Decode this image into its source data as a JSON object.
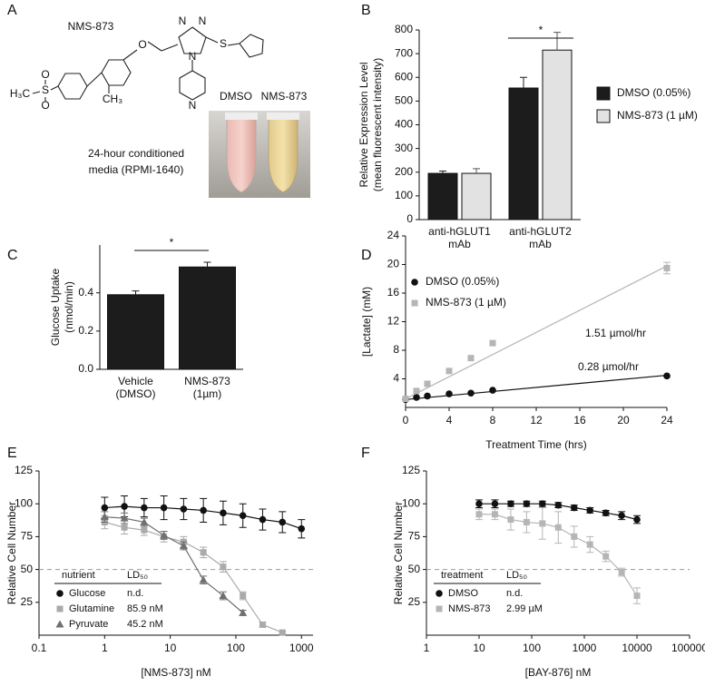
{
  "panel_a": {
    "panel": "A",
    "compound": "NMS-873",
    "tube_labels": [
      "DMSO",
      "NMS-873"
    ],
    "caption": [
      "24-hour conditioned",
      "media (RPMI-1640)"
    ],
    "atoms": [
      "H₃C",
      "S",
      "O",
      "O",
      "CH₃",
      "O",
      "N",
      "N",
      "N",
      "S",
      "N"
    ]
  },
  "chart_data": [
    {
      "panel": "B",
      "type": "bar",
      "ylabel": [
        "Relative Expression Level",
        "(mean fluorescent intensity)"
      ],
      "categories": [
        [
          "anti-hGLUT1",
          "mAb"
        ],
        [
          "anti-hGLUT2",
          "mAb"
        ]
      ],
      "series": [
        {
          "name": "DMSO (0.05%)",
          "color": "#1c1c1c",
          "values": [
            195,
            555
          ],
          "errors": [
            10,
            45
          ]
        },
        {
          "name": "NMS-873 (1 µM)",
          "color": "#e2e2e2",
          "values": [
            195,
            715
          ],
          "errors": [
            20,
            75
          ]
        }
      ],
      "ylim": [
        0,
        800
      ],
      "yticks": [
        0,
        100,
        200,
        300,
        400,
        500,
        600,
        700,
        800
      ],
      "significance": "*"
    },
    {
      "panel": "C",
      "type": "bar",
      "ylabel": [
        "Glucose Uptake",
        "(nmol/min)"
      ],
      "categories": [
        [
          "Vehicle",
          "(DMSO)"
        ],
        [
          "NMS-873",
          "(1µm)"
        ]
      ],
      "values": [
        0.39,
        0.535
      ],
      "errors": [
        0.02,
        0.025
      ],
      "color": "#1c1c1c",
      "ylim": [
        0,
        0.65
      ],
      "yticks": [
        {
          "value": 0,
          "label": "0.0"
        },
        0.2,
        0.4
      ],
      "significance": "*"
    },
    {
      "panel": "D",
      "type": "scatter",
      "ylabel": [
        "[Lactate]  (mM)"
      ],
      "xlabel": "Treatment Time (hrs)",
      "xlim": [
        0,
        24
      ],
      "xticks": [
        0,
        4,
        8,
        12,
        16,
        20,
        24
      ],
      "ylim": [
        0,
        24
      ],
      "yticks": [
        4,
        8,
        12,
        16,
        20,
        24
      ],
      "series": [
        {
          "name": "DMSO (0.05%)",
          "color": "#111111",
          "marker": "circle",
          "x": [
            0,
            1,
            2,
            4,
            6,
            8,
            24
          ],
          "values": [
            1.1,
            1.4,
            1.6,
            1.9,
            2.0,
            2.4,
            4.4
          ],
          "fit": {
            "x": [
              0,
              24
            ],
            "values": [
              1.1,
              4.5
            ]
          },
          "label": "0.28 µmol/hr"
        },
        {
          "name": "NMS-873 (1 µM)",
          "color": "#b5b5b5",
          "marker": "square",
          "x": [
            0,
            1,
            2,
            4,
            6,
            8,
            24
          ],
          "values": [
            1.2,
            2.3,
            3.3,
            5.1,
            6.9,
            9.0,
            19.5
          ],
          "errors": [
            null,
            null,
            null,
            null,
            null,
            null,
            0.8
          ],
          "fit": {
            "x": [
              0,
              24
            ],
            "values": [
              1.2,
              19.8
            ]
          },
          "label": "1.51 µmol/hr"
        }
      ]
    },
    {
      "panel": "E",
      "type": "line",
      "xscale": "log",
      "ylabel": [
        "Relative Cell Number"
      ],
      "xlabel": "[NMS-873] nM",
      "xlim": [
        0.1,
        1500
      ],
      "xticks": [
        0.1,
        1,
        10,
        100,
        1000
      ],
      "ylim": [
        0,
        125
      ],
      "yticks": [
        25,
        50,
        75,
        100,
        125
      ],
      "reference_line": 50,
      "legend_header": [
        "nutrient",
        "LD₅₀"
      ],
      "series": [
        {
          "name": "Glucose",
          "ld50": "n.d.",
          "color": "#111111",
          "marker": "circle",
          "x": [
            1,
            2,
            4,
            8,
            16,
            32,
            64,
            128,
            256,
            512,
            1000
          ],
          "values": [
            97,
            98,
            97,
            97,
            96,
            95,
            93,
            91,
            88,
            86,
            81
          ],
          "errors": [
            8,
            8,
            7,
            9,
            8,
            9,
            9,
            9,
            8,
            8,
            7
          ]
        },
        {
          "name": "Glutamine",
          "ld50": "85.9 nM",
          "color": "#aaaaaa",
          "marker": "square",
          "x": [
            1,
            2,
            4,
            8,
            16,
            32,
            64,
            128,
            256,
            512
          ],
          "values": [
            86,
            82,
            80,
            75,
            71,
            63,
            52,
            30,
            8,
            2
          ],
          "errors": [
            5,
            5,
            4,
            4,
            4,
            4,
            4,
            3,
            2,
            1
          ]
        },
        {
          "name": "Pyruvate",
          "ld50": "45.2 nM",
          "color": "#707070",
          "marker": "triangle",
          "x": [
            1,
            2,
            4,
            8,
            16,
            32,
            64,
            128
          ],
          "values": [
            90,
            89,
            86,
            76,
            68,
            42,
            30,
            17
          ],
          "errors": [
            4,
            4,
            3,
            3,
            3,
            3,
            3,
            2
          ]
        }
      ]
    },
    {
      "panel": "F",
      "type": "line",
      "xscale": "log",
      "ylabel": [
        "Relative Cell Number"
      ],
      "xlabel": "[BAY-876] nM",
      "xlim": [
        1,
        100000
      ],
      "xticks": [
        1,
        10,
        100,
        1000,
        10000,
        100000
      ],
      "ylim": [
        0,
        125
      ],
      "yticks": [
        25,
        50,
        75,
        100,
        125
      ],
      "reference_line": 50,
      "legend_header": [
        "treatment",
        "LD₅₀"
      ],
      "series": [
        {
          "name": "DMSO",
          "ld50": "n.d.",
          "color": "#111111",
          "marker": "circle",
          "x": [
            10,
            20,
            40,
            80,
            160,
            320,
            640,
            1280,
            2560,
            5120,
            10000
          ],
          "values": [
            100,
            100,
            100,
            100,
            100,
            99,
            97,
            95,
            93,
            91,
            88
          ],
          "errors": [
            3,
            3,
            2,
            2,
            2,
            2,
            2,
            2,
            2,
            3,
            3
          ]
        },
        {
          "name": "NMS-873",
          "ld50": "2.99 µM",
          "color": "#b5b5b5",
          "marker": "square",
          "x": [
            10,
            20,
            40,
            80,
            160,
            320,
            640,
            1280,
            2560,
            5120,
            10000
          ],
          "values": [
            92,
            92,
            88,
            86,
            85,
            82,
            75,
            69,
            60,
            48,
            30
          ],
          "errors": [
            4,
            4,
            8,
            8,
            12,
            12,
            8,
            6,
            4,
            3,
            6
          ]
        }
      ]
    }
  ]
}
